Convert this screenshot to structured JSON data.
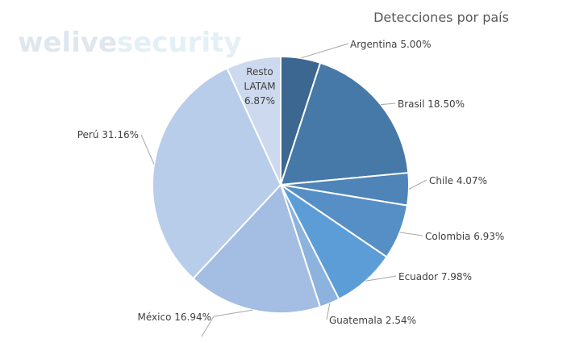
{
  "watermark": {
    "part1": "welive",
    "part2": "security",
    "color1": "#dfe7ee",
    "color2": "#e3f0f6"
  },
  "chart_data": {
    "type": "pie",
    "title": "Detecciones por país",
    "start_angle_deg": 0,
    "direction": "clockwise",
    "slices": [
      {
        "name": "Argentina",
        "value": 5.0,
        "label": "Argentina 5.00%",
        "color": "#3b6790"
      },
      {
        "name": "Brasil",
        "value": 18.5,
        "label": "Brasil 18.50%",
        "color": "#4679a8"
      },
      {
        "name": "Chile",
        "value": 4.07,
        "label": "Chile 4.07%",
        "color": "#4e84b7"
      },
      {
        "name": "Colombia",
        "value": 6.93,
        "label": "Colombia 6.93%",
        "color": "#558fc6"
      },
      {
        "name": "Ecuador",
        "value": 7.98,
        "label": "Ecuador 7.98%",
        "color": "#5c9dd8"
      },
      {
        "name": "Guatemala",
        "value": 2.54,
        "label": "Guatemala 2.54%",
        "color": "#8cb2de"
      },
      {
        "name": "México",
        "value": 16.94,
        "label": "México 16.94%",
        "color": "#a3bde3"
      },
      {
        "name": "Perú",
        "value": 31.16,
        "label": "Perú 31.16%",
        "color": "#b8cde9"
      },
      {
        "name": "Resto LATAM",
        "value": 6.87,
        "label_lines": [
          "Resto",
          "LATAM",
          "6.87%"
        ],
        "color": "#cdd9ee"
      }
    ]
  }
}
